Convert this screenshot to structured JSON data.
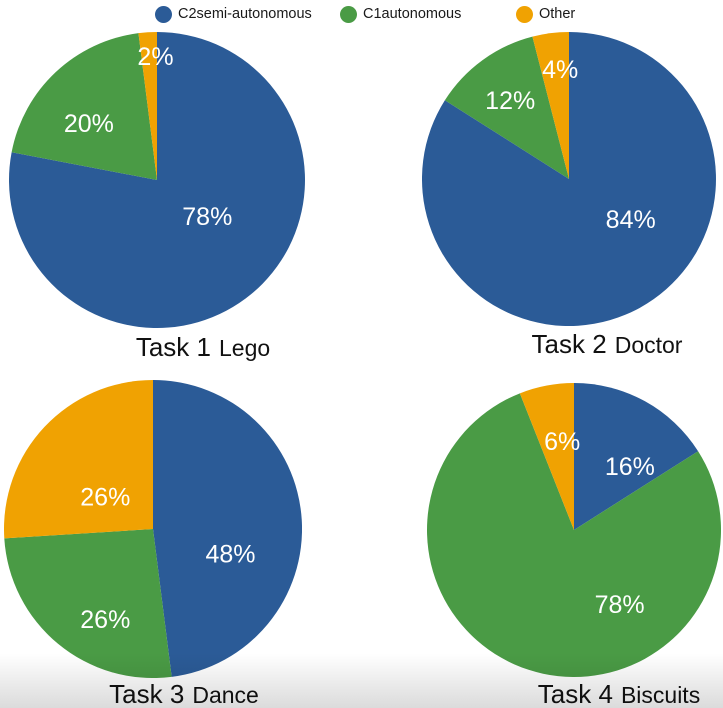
{
  "legend": {
    "position": "top",
    "items": [
      {
        "label": "C2semi-autonomous",
        "color": "#2B5B97"
      },
      {
        "label": "C1autonomous",
        "color": "#4A9B45"
      },
      {
        "label": "Other",
        "color": "#F0A202"
      }
    ]
  },
  "chart_data": [
    {
      "type": "pie",
      "title": "Task 1 Lego",
      "title_task": "Task 1",
      "title_name": "Lego",
      "series": [
        "C2semi-autonomous",
        "C1autonomous",
        "Other"
      ],
      "values": [
        78,
        20,
        2
      ],
      "labels": [
        "78%",
        "20%",
        "2%"
      ],
      "start_angle_deg": 0,
      "direction": "clockwise",
      "label_pos_frac": [
        [
          0.34,
          0.25
        ],
        [
          -0.46,
          -0.38
        ],
        [
          -0.01,
          -0.83
        ]
      ]
    },
    {
      "type": "pie",
      "title": "Task 2 Doctor",
      "title_task": "Task 2",
      "title_name": "Doctor",
      "series": [
        "C2semi-autonomous",
        "C1autonomous",
        "Other"
      ],
      "values": [
        84,
        12,
        4
      ],
      "labels": [
        "84%",
        "12%",
        "4%"
      ],
      "start_angle_deg": 0,
      "direction": "clockwise",
      "label_pos_frac": [
        [
          0.42,
          0.28
        ],
        [
          -0.4,
          -0.53
        ],
        [
          -0.06,
          -0.74
        ]
      ]
    },
    {
      "type": "pie",
      "title": "Task 3 Dance",
      "title_task": "Task 3",
      "title_name": "Dance",
      "series": [
        "C2semi-autonomous",
        "C1autonomous",
        "Other"
      ],
      "values": [
        48,
        26,
        26
      ],
      "labels": [
        "48%",
        "26%",
        "26%"
      ],
      "start_angle_deg": 0,
      "direction": "clockwise",
      "label_pos_frac": [
        [
          0.52,
          0.17
        ],
        [
          -0.32,
          0.61
        ],
        [
          -0.32,
          -0.21
        ]
      ]
    },
    {
      "type": "pie",
      "title": "Task 4 Biscuits",
      "title_task": "Task 4",
      "title_name": "Biscuits",
      "series": [
        "C2semi-autonomous",
        "C1autonomous",
        "Other"
      ],
      "values": [
        16,
        78,
        6
      ],
      "labels": [
        "16%",
        "78%",
        "6%"
      ],
      "start_angle_deg": 0,
      "direction": "clockwise",
      "label_pos_frac": [
        [
          0.38,
          -0.43
        ],
        [
          0.31,
          0.51
        ],
        [
          -0.08,
          -0.6
        ]
      ]
    }
  ]
}
